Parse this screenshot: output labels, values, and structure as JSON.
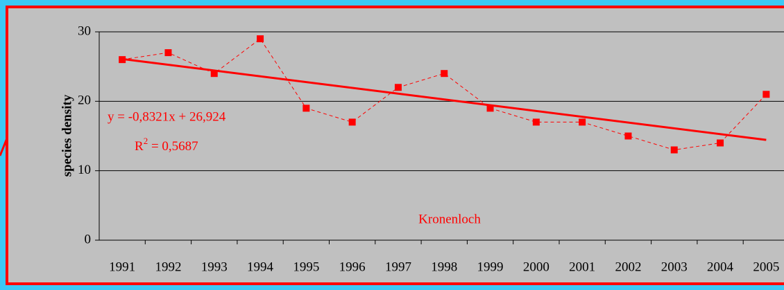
{
  "chart_data": {
    "type": "line",
    "y_label": "species density",
    "categories": [
      "1991",
      "1992",
      "1993",
      "1994",
      "1995",
      "1996",
      "1997",
      "1998",
      "1999",
      "2000",
      "2001",
      "2002",
      "2003",
      "2004",
      "2005"
    ],
    "series": [
      {
        "name": "Kronenloch",
        "color": "#ff0000",
        "values": [
          26,
          27,
          24,
          29,
          19,
          17,
          22,
          24,
          19,
          17,
          17,
          15,
          13,
          14,
          21
        ]
      }
    ],
    "ylim": [
      0,
      30
    ],
    "yticks": [
      0,
      10,
      20,
      30
    ],
    "grid": true,
    "trendline": "linear",
    "annotations": {
      "equation": "y = -0,8321x + 26,924",
      "r_squared_base": "R",
      "r_squared_sup": "2",
      "r_squared_rest": " = 0,5687"
    }
  }
}
